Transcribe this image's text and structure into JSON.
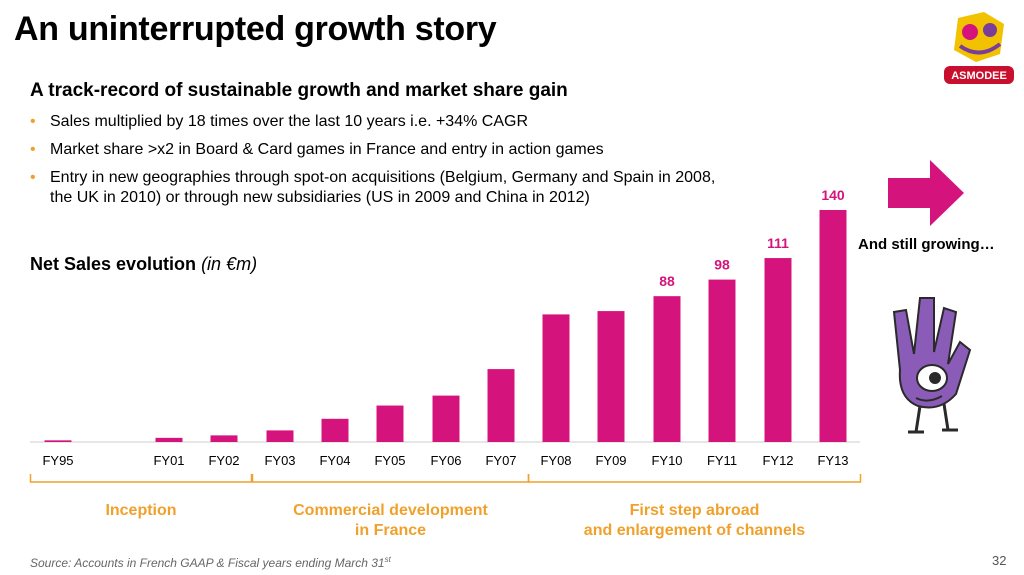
{
  "slide": {
    "title": "An uninterrupted growth story",
    "subtitle": "A track-record of sustainable growth and market share gain",
    "bullets": [
      "Sales multiplied by 18 times over the last 10 years i.e. +34% CAGR",
      "Market share >x2 in Board & Card games in France and entry in action games",
      "Entry in new geographies through spot-on acquisitions (Belgium, Germany and Spain in 2008, the UK in 2010) or through new subsidiaries (US in 2009 and China in 2012)"
    ],
    "bullet_symbol": "•",
    "chart_title": "Net Sales evolution",
    "chart_unit": "(in €m)",
    "still_growing": "And still growing…",
    "logo_text": "ASMODEE",
    "source": "Source: Accounts in French GAAP & Fiscal years ending March 31",
    "source_sup": "st",
    "page_number": "32"
  },
  "colors": {
    "bar": "#d4147c",
    "bracket": "#f0a12c",
    "phase_text": "#f0a12c",
    "arrow": "#d4147c"
  },
  "chart_data": {
    "type": "bar",
    "categories": [
      "FY95",
      "FY01",
      "FY02",
      "FY03",
      "FY04",
      "FY05",
      "FY06",
      "FY07",
      "FY08",
      "FY09",
      "FY10",
      "FY11",
      "FY12",
      "FY13"
    ],
    "values": [
      1,
      2.5,
      4,
      7,
      14,
      22,
      28,
      44,
      77,
      79,
      88,
      98,
      111,
      140
    ],
    "data_labels": [
      "",
      "",
      "",
      "",
      "",
      "",
      "",
      "",
      "",
      "",
      "88",
      "98",
      "111",
      "140"
    ],
    "ylim": [
      0,
      140
    ],
    "phases": [
      {
        "label": "Inception",
        "from": 0,
        "to": 2
      },
      {
        "label": "Commercial development\nin France",
        "from": 3,
        "to": 7
      },
      {
        "label": "First step abroad\nand enlargement of channels",
        "from": 8,
        "to": 13
      }
    ]
  }
}
